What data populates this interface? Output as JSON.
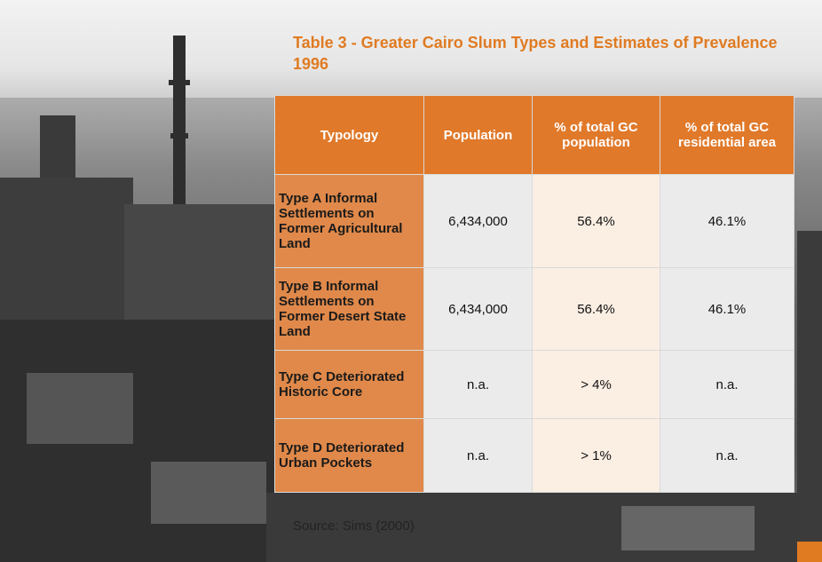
{
  "title": "Table 3 - Greater Cairo Slum Types and Estimates of Prevalence 1996",
  "table": {
    "header": [
      "Typology",
      "Population",
      "% of total GC population",
      "% of total GC residential area"
    ],
    "rows": [
      [
        "Type A Informal Settlements on Former Agricultural Land",
        "6,434,000",
        "56.4%",
        "46.1%"
      ],
      [
        "Type B Informal Settlements on Former Desert State Land",
        "6,434,000",
        "56.4%",
        "46.1%"
      ],
      [
        "Type C Deteriorated Historic Core",
        "n.a.",
        "> 4%",
        "n.a."
      ],
      [
        "Type D Deteriorated Urban Pockets",
        "n.a.",
        "> 1%",
        "n.a."
      ]
    ]
  },
  "source": "Source: Sims (2000)"
}
